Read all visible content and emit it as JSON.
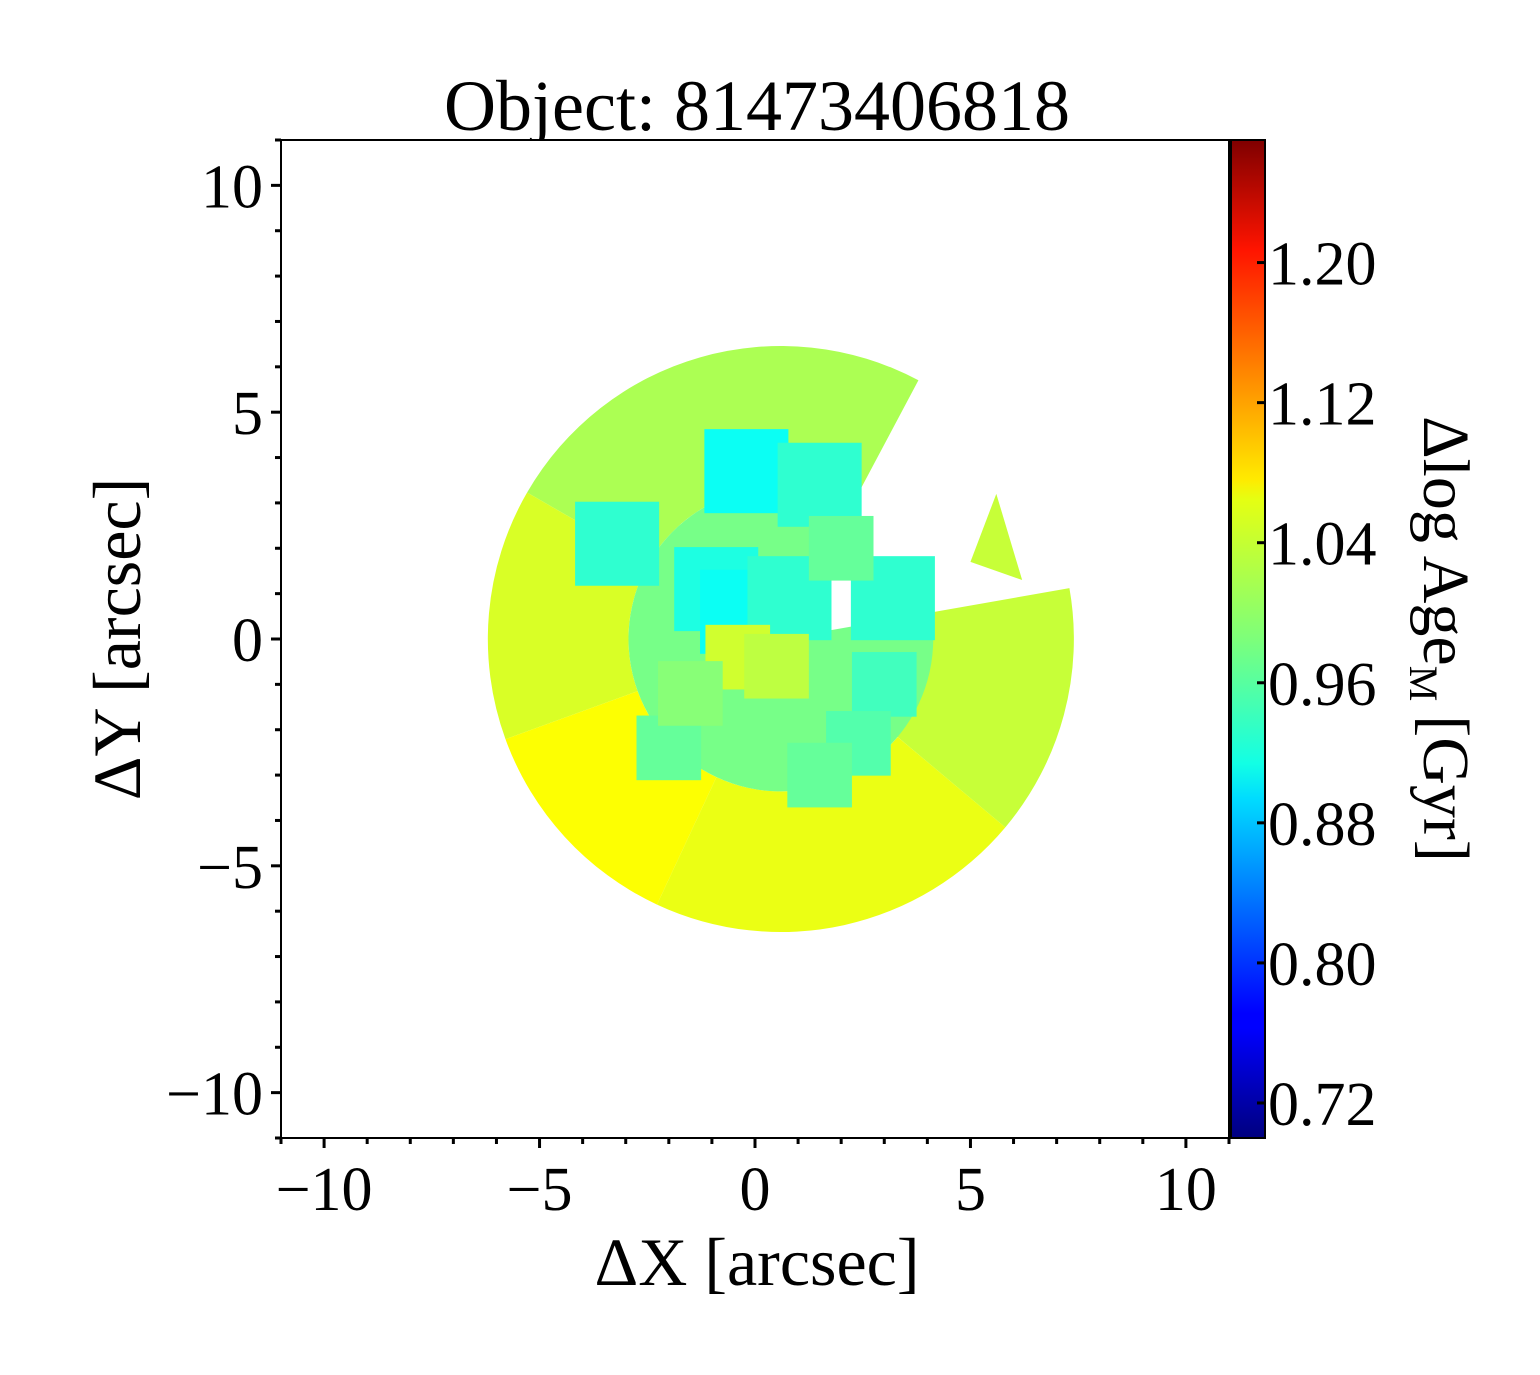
{
  "chart_data": {
    "type": "heatmap",
    "title": "Object: 81473406818",
    "xlabel": "ΔX [arcsec]",
    "ylabel": "ΔY [arcsec]",
    "xlim": [
      -11,
      11
    ],
    "ylim": [
      -11,
      11
    ],
    "x_ticks": [
      -10,
      -5,
      0,
      5,
      10
    ],
    "y_ticks": [
      10,
      5,
      0,
      -5,
      -10
    ],
    "x_tick_labels": [
      "−10",
      "−5",
      "0",
      "5",
      "10"
    ],
    "y_tick_labels": [
      "10",
      "5",
      "0",
      "−5",
      "−10"
    ],
    "colorbar": {
      "label_main": "Δlog Age",
      "label_sub": "M",
      "label_unit": "[Gyr]",
      "colormap": "jet",
      "range": [
        0.7,
        1.27
      ],
      "ticks": [
        0.72,
        0.8,
        0.88,
        0.96,
        1.04,
        1.12,
        1.2
      ],
      "tick_labels": [
        "0.72",
        "0.80",
        "0.88",
        "0.96",
        "1.04",
        "1.12",
        "1.20"
      ]
    },
    "map": {
      "center": [
        0.6,
        0
      ],
      "outer_radius": 6.8,
      "missing_wedge_deg": [
        10,
        62
      ],
      "background_value": 1.01,
      "regions": [
        {
          "name": "outer-south",
          "value": 1.045
        },
        {
          "name": "outer-southwest",
          "value": 1.055
        },
        {
          "name": "outer-west",
          "value": 1.035
        },
        {
          "name": "outer-north",
          "value": 1.01
        },
        {
          "name": "outer-east",
          "value": 1.025
        },
        {
          "name": "inner",
          "value": 0.98
        }
      ],
      "bins": [
        {
          "x": -0.2,
          "y": 3.7,
          "value": 0.92
        },
        {
          "x": 1.5,
          "y": 3.4,
          "value": 0.94
        },
        {
          "x": -3.2,
          "y": 2.1,
          "value": 0.94
        },
        {
          "x": 3.2,
          "y": 0.9,
          "value": 0.94
        },
        {
          "x": 3.0,
          "y": -1.0,
          "value": 0.95
        },
        {
          "x": 2.4,
          "y": -2.3,
          "value": 0.96
        },
        {
          "x": -2.0,
          "y": -2.4,
          "value": 0.97
        },
        {
          "x": 1.5,
          "y": -3.0,
          "value": 0.97
        },
        {
          "x": -0.9,
          "y": 1.1,
          "value": 0.93
        },
        {
          "x": -0.3,
          "y": 0.6,
          "value": 0.92
        },
        {
          "x": 0.8,
          "y": 0.9,
          "value": 0.94
        },
        {
          "x": -0.4,
          "y": -0.4,
          "value": 1.03
        },
        {
          "x": 0.5,
          "y": -0.6,
          "value": 1.02
        },
        {
          "x": -1.5,
          "y": -1.2,
          "value": 0.99
        },
        {
          "x": 2.0,
          "y": 2.0,
          "value": 0.97
        }
      ]
    }
  }
}
